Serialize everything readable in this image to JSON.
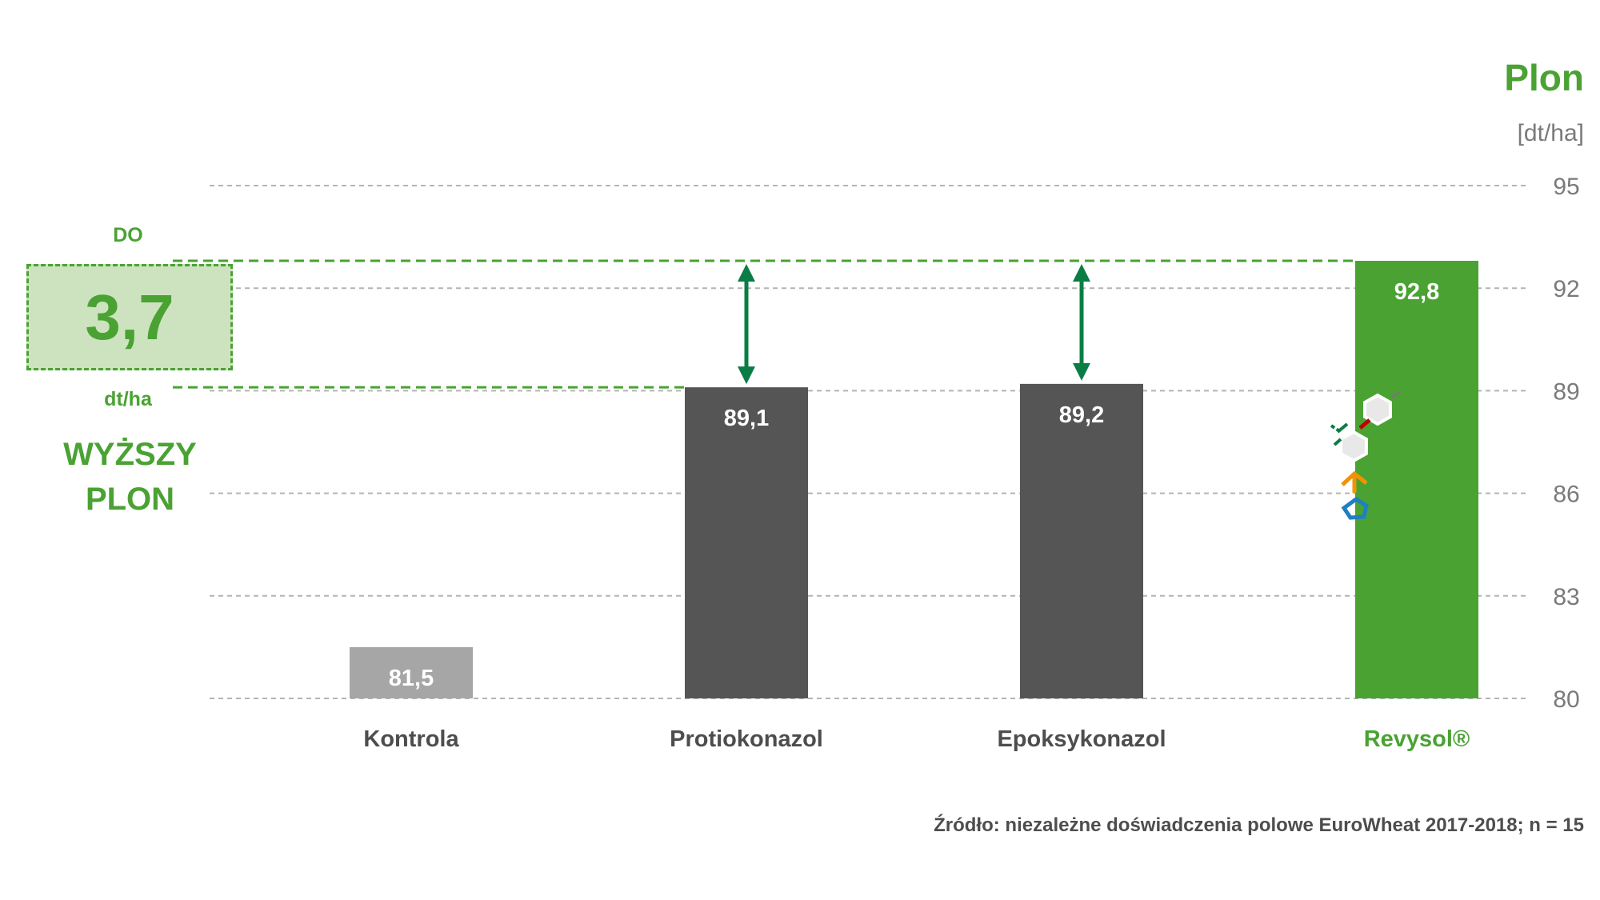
{
  "chart_data": {
    "type": "bar",
    "title": "Plon",
    "ylabel": "[dt/ha]",
    "categories": [
      "Kontrola",
      "Protiokonazol",
      "Epoksykonazol",
      "Revysol®"
    ],
    "values": [
      81.5,
      89.1,
      89.2,
      92.8
    ],
    "value_labels": [
      "81,5",
      "89,1",
      "89,2",
      "92,8"
    ],
    "ylim": [
      80,
      95
    ],
    "yticks": [
      80,
      83,
      86,
      89,
      92,
      95
    ],
    "ytick_labels": [
      "80",
      "83",
      "86",
      "89",
      "92",
      "95"
    ],
    "grid": true,
    "y_axis_side": "right",
    "bar_colors": [
      "#a6a6a6",
      "#555555",
      "#555555",
      "#4aa233"
    ],
    "category_label_colors": [
      "#4d4d4d",
      "#4d4d4d",
      "#4d4d4d",
      "#4aa233"
    ],
    "annotation": {
      "prefix": "DO",
      "value": "3,7",
      "unit": "dt/ha",
      "text_line1": "WYŻSZY",
      "text_line2": "PLON",
      "reference_low": 89.1,
      "reference_high": 92.8
    },
    "source": "Źródło: niezależne doświadczenia polowe EuroWheat 2017-2018; n = 15"
  },
  "colors": {
    "accent_green": "#4aa233",
    "arrow_green": "#0a7d45",
    "callout_fill": "#cde3bf",
    "dark_bar": "#555555",
    "light_bar": "#a6a6a6",
    "grid": "#b3b3b3"
  }
}
